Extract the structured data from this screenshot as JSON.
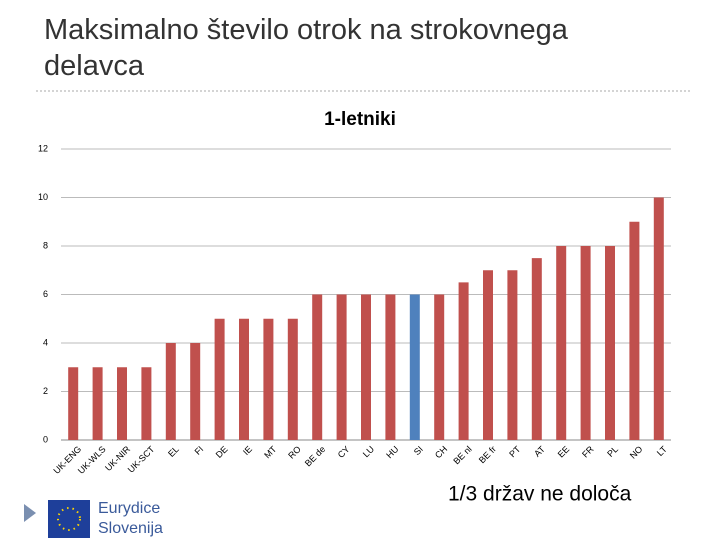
{
  "slide_title": "Maksimalno število otrok na strokovnega delavca",
  "chart_data": {
    "type": "bar",
    "title": "1-letniki",
    "categories": [
      "UK-ENG",
      "UK-WLS",
      "UK-NIR",
      "UK-SCT",
      "EL",
      "FI",
      "DE",
      "IE",
      "MT",
      "RO",
      "BE de",
      "CY",
      "LU",
      "HU",
      "SI",
      "CH",
      "BE nl",
      "BE fr",
      "PT",
      "AT",
      "EE",
      "FR",
      "PL",
      "NO",
      "LT"
    ],
    "values": [
      3,
      3,
      3,
      3,
      4,
      4,
      5,
      5,
      5,
      5,
      6,
      6,
      6,
      6,
      6,
      6,
      6.5,
      7,
      7,
      7.5,
      8,
      8,
      8,
      9,
      10
    ],
    "colors": [
      "#c0504d",
      "#c0504d",
      "#c0504d",
      "#c0504d",
      "#c0504d",
      "#c0504d",
      "#c0504d",
      "#c0504d",
      "#c0504d",
      "#c0504d",
      "#c0504d",
      "#c0504d",
      "#c0504d",
      "#c0504d",
      "#4f81bd",
      "#c0504d",
      "#c0504d",
      "#c0504d",
      "#c0504d",
      "#c0504d",
      "#c0504d",
      "#c0504d",
      "#c0504d",
      "#c0504d",
      "#c0504d"
    ],
    "ylim": [
      0,
      12
    ],
    "yticks": [
      0,
      2,
      4,
      6,
      8,
      10,
      12
    ],
    "grid": true
  },
  "annotation": "1/3 držav ne določa",
  "logo": {
    "name": "Eurydice",
    "country": "Slovenija"
  }
}
